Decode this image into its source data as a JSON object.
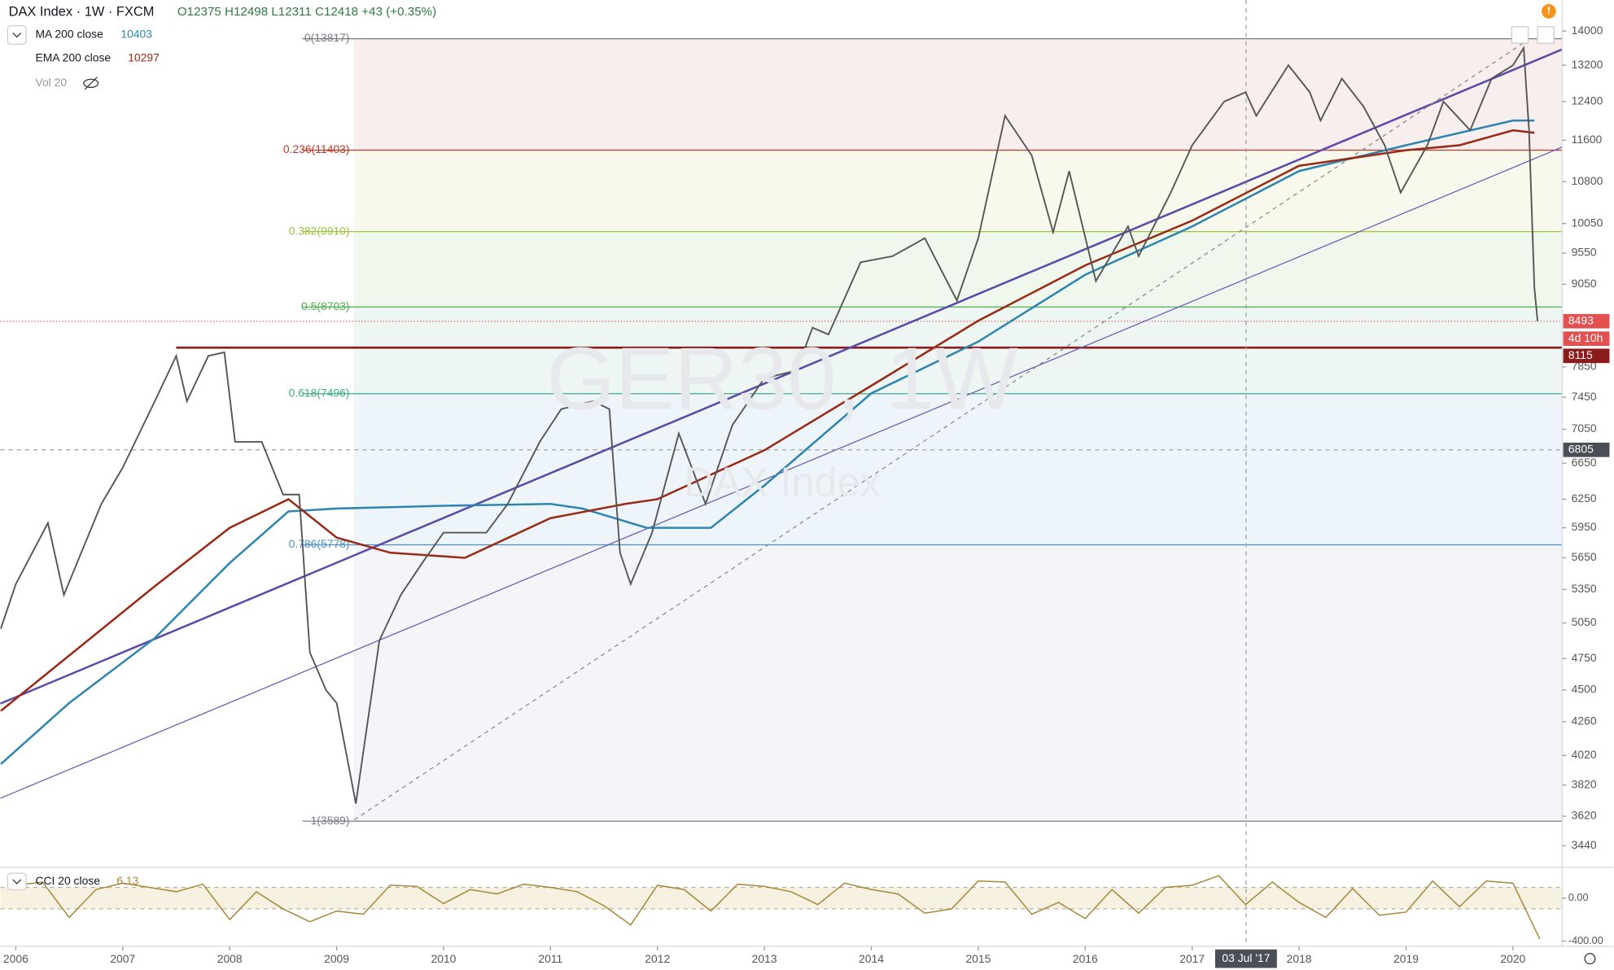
{
  "header": {
    "symbol": "DAX Index · 1W · FXCM",
    "ohlc": "O12375 H12498 L12311 C12418 +43 (+0.35%)"
  },
  "watermark": {
    "title": "GER30, 1W",
    "subtitle": "DAX Index"
  },
  "chart_data": [
    {
      "type": "line",
      "log_scale": true,
      "grid": false,
      "color": "#555555",
      "xlim": [
        2005.856,
        2020.46
      ],
      "xticks": [
        2006,
        2007,
        2008,
        2009,
        2010,
        2011,
        2012,
        2013,
        2014,
        2015,
        2016,
        2017,
        2018,
        2019,
        2020
      ],
      "ylim": [
        3316,
        14770
      ],
      "yticks": [
        14000,
        13200,
        12400,
        11600,
        10800,
        10050,
        9550,
        9050,
        7850,
        7450,
        7050,
        6650,
        6250,
        5950,
        5650,
        5350,
        5050,
        4750,
        4500,
        4260,
        4020,
        3820,
        3620,
        3440
      ],
      "x": [
        2005.86,
        2006.0,
        2006.3,
        2006.45,
        2006.8,
        2007.0,
        2007.3,
        2007.5,
        2007.6,
        2007.8,
        2007.95,
        2008.05,
        2008.3,
        2008.5,
        2008.65,
        2008.75,
        2008.9,
        2009.0,
        2009.18,
        2009.4,
        2009.6,
        2009.8,
        2010.0,
        2010.4,
        2010.6,
        2010.9,
        2011.1,
        2011.4,
        2011.55,
        2011.65,
        2011.75,
        2011.95,
        2012.2,
        2012.45,
        2012.7,
        2013.0,
        2013.3,
        2013.45,
        2013.6,
        2013.9,
        2014.2,
        2014.5,
        2014.8,
        2015.0,
        2015.25,
        2015.5,
        2015.7,
        2015.85,
        2016.1,
        2016.4,
        2016.5,
        2016.8,
        2017.0,
        2017.3,
        2017.5,
        2017.6,
        2017.9,
        2018.1,
        2018.2,
        2018.4,
        2018.6,
        2018.8,
        2018.95,
        2019.2,
        2019.35,
        2019.6,
        2019.8,
        2020.0,
        2020.1,
        2020.15,
        2020.2,
        2020.23
      ],
      "values": [
        5000,
        5400,
        6000,
        5300,
        6200,
        6600,
        7400,
        8000,
        7400,
        8000,
        8050,
        6900,
        6900,
        6300,
        6300,
        4800,
        4500,
        4400,
        3700,
        4900,
        5300,
        5600,
        5900,
        5900,
        6200,
        6900,
        7300,
        7400,
        7300,
        5700,
        5400,
        5900,
        7000,
        6200,
        7100,
        7700,
        7800,
        8400,
        8300,
        9400,
        9500,
        9800,
        8800,
        9800,
        12100,
        11300,
        9900,
        11000,
        9100,
        10000,
        9500,
        10600,
        11500,
        12400,
        12600,
        12100,
        13200,
        12600,
        12000,
        12900,
        12300,
        11500,
        10600,
        11500,
        12400,
        11800,
        12900,
        13200,
        13600,
        11800,
        9000,
        8493
      ],
      "series": [
        {
          "name": "MA 200 close",
          "color": "#2e86b0",
          "last": 10403,
          "x": [
            2005.86,
            2006.5,
            2007.3,
            2008.0,
            2008.55,
            2009.0,
            2010.0,
            2011.0,
            2011.3,
            2011.9,
            2012.5,
            2013.0,
            2014.0,
            2015.0,
            2016.0,
            2017.0,
            2018.0,
            2019.0,
            2020.0,
            2020.2
          ],
          "values": [
            3960,
            4400,
            4920,
            5600,
            6120,
            6150,
            6180,
            6200,
            6150,
            5950,
            5950,
            6400,
            7500,
            8200,
            9200,
            10000,
            11000,
            11500,
            12000,
            12000
          ]
        },
        {
          "name": "EMA 200 close",
          "color": "#9a2a16",
          "last": 10297,
          "x": [
            2005.86,
            2007.3,
            2008.0,
            2008.55,
            2009.0,
            2009.5,
            2010.2,
            2011.0,
            2011.7,
            2012.0,
            2013.0,
            2014.0,
            2015.0,
            2016.0,
            2017.0,
            2018.0,
            2019.0,
            2019.5,
            2020.0,
            2020.2
          ],
          "values": [
            4340,
            5380,
            5950,
            6250,
            5850,
            5700,
            5650,
            6050,
            6200,
            6250,
            6800,
            7600,
            8500,
            9350,
            10100,
            11100,
            11400,
            11500,
            11800,
            11750
          ]
        }
      ],
      "volume_label": "Vol 20",
      "fib_start": 2009.16,
      "fib_levels": [
        {
          "value": 13817,
          "label": "0(13817)",
          "color": "#787b86",
          "fill": "#f8eeee"
        },
        {
          "value": 11403,
          "label": "0.236(11403)",
          "color": "#c0392b",
          "fill": "#f8f8ec"
        },
        {
          "value": 9910,
          "label": "0.382(9910)",
          "color": "#9bc53d",
          "fill": "#f0f7ec"
        },
        {
          "value": 8703,
          "label": "0.5(8703)",
          "color": "#4caf50",
          "fill": "#eef6f3"
        },
        {
          "value": 7496,
          "label": "0.618(7496)",
          "color": "#3fae8a",
          "fill": "#eef5fa"
        },
        {
          "value": 5778,
          "label": "0.786(5778)",
          "color": "#4a90c2",
          "fill": "#f3f5f8"
        },
        {
          "value": 3589,
          "label": "1(3589)",
          "color": "#787b86"
        }
      ],
      "support_line": {
        "value": 8115,
        "from": 2007.5,
        "color": "#8b1a1a"
      },
      "last_price": {
        "value": 8493,
        "color": "#e35050",
        "countdown": "4d 10h"
      },
      "crosshair": {
        "x": {
          "value": 2017.504,
          "label": "03 Jul '17"
        },
        "y": 6805
      }
    },
    {
      "type": "line",
      "name": "CCI 20 close",
      "last": 6.13,
      "color": "#a88838",
      "ylim": [
        -430,
        270
      ],
      "yticks": [
        {
          "value": 0,
          "label": "0.00"
        },
        {
          "value": -400,
          "label": "-400.00"
        }
      ],
      "bands": [
        -100,
        100
      ],
      "x": [
        2006,
        2006.25,
        2006.5,
        2006.75,
        2007,
        2007.25,
        2007.5,
        2007.75,
        2008,
        2008.25,
        2008.5,
        2008.75,
        2009,
        2009.25,
        2009.5,
        2009.75,
        2010,
        2010.25,
        2010.5,
        2010.75,
        2011,
        2011.25,
        2011.5,
        2011.75,
        2012,
        2012.25,
        2012.5,
        2012.75,
        2013,
        2013.25,
        2013.5,
        2013.75,
        2014,
        2014.25,
        2014.5,
        2014.75,
        2015,
        2015.25,
        2015.5,
        2015.75,
        2016,
        2016.25,
        2016.5,
        2016.75,
        2017,
        2017.25,
        2017.5,
        2017.75,
        2018,
        2018.25,
        2018.5,
        2018.75,
        2019,
        2019.25,
        2019.5,
        2019.75,
        2020,
        2020.25
      ],
      "values": [
        120,
        150,
        -180,
        80,
        140,
        100,
        60,
        130,
        -200,
        60,
        -100,
        -220,
        -120,
        -150,
        120,
        110,
        -50,
        80,
        40,
        130,
        100,
        60,
        -70,
        -250,
        120,
        80,
        -120,
        130,
        110,
        60,
        -60,
        140,
        80,
        40,
        -140,
        -100,
        160,
        150,
        -150,
        -40,
        -190,
        80,
        -140,
        100,
        120,
        210,
        -60,
        150,
        -40,
        -180,
        90,
        -160,
        -130,
        160,
        -80,
        160,
        140,
        -380
      ]
    }
  ]
}
